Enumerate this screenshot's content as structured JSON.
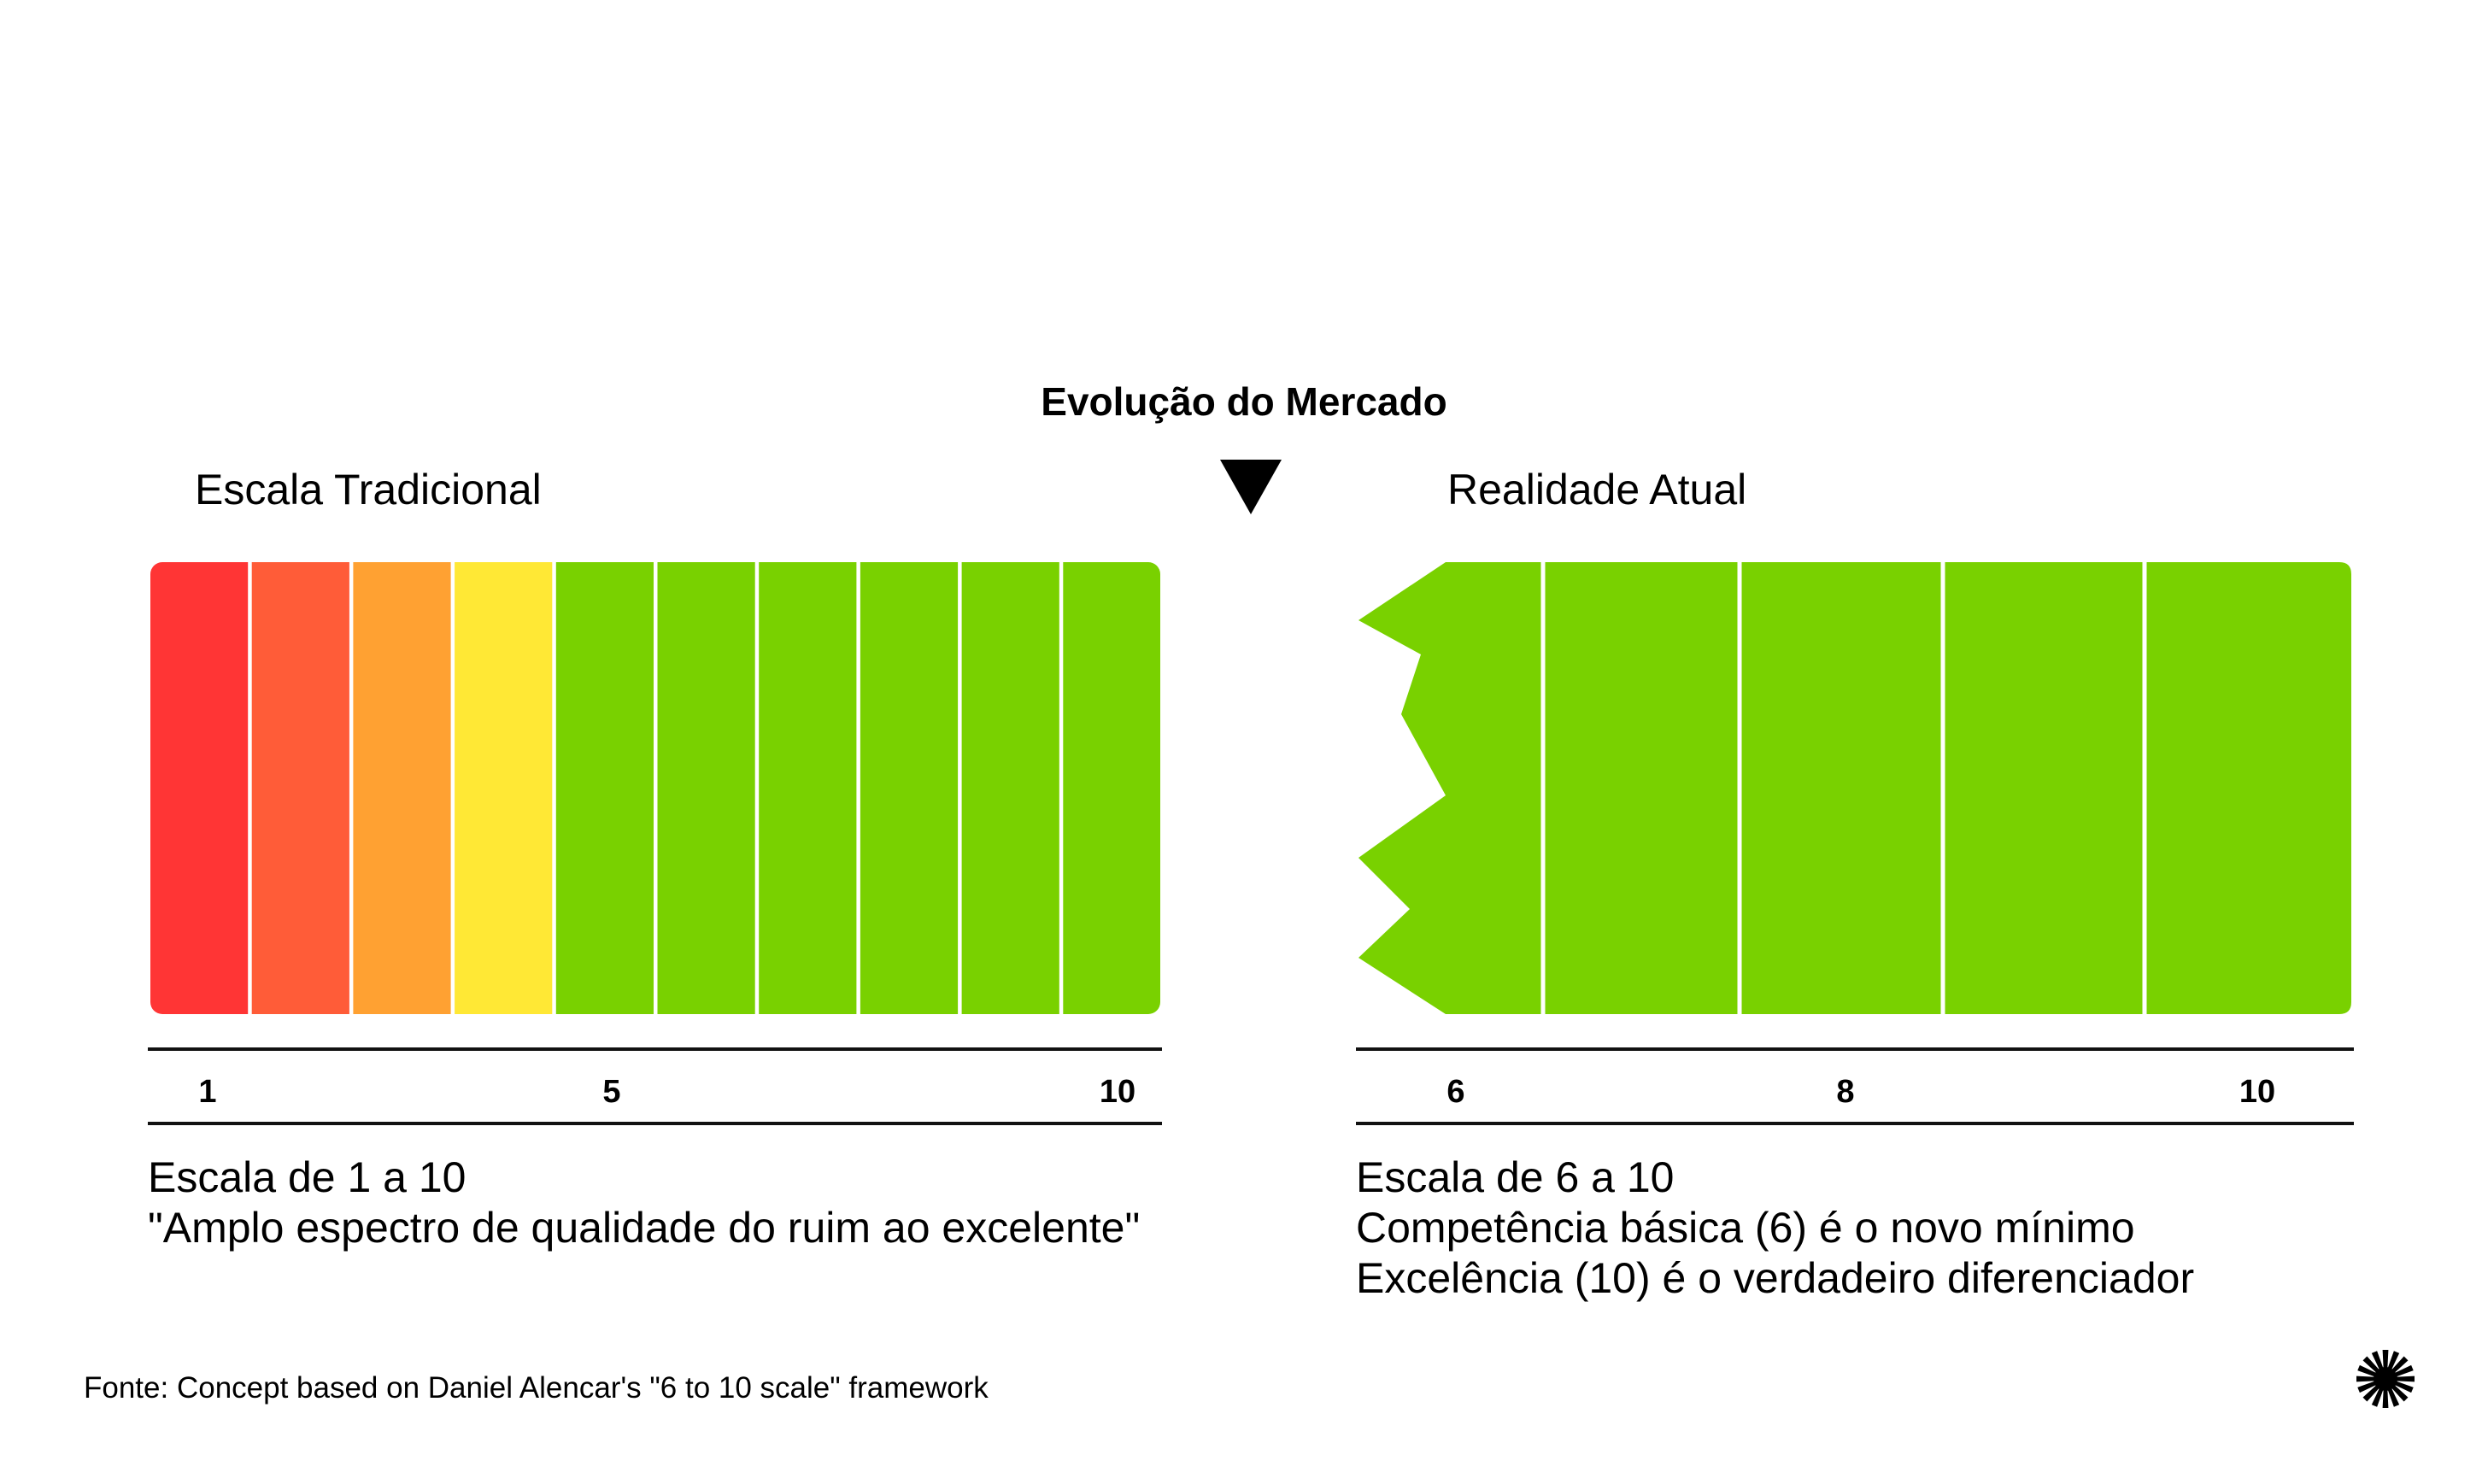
{
  "title": "Evolução do Mercado",
  "left_panel": {
    "heading": "Escala Tradicional",
    "segments": [
      {
        "value": 1,
        "color": "#FF3535"
      },
      {
        "value": 2,
        "color": "#FF5C38"
      },
      {
        "value": 3,
        "color": "#FFA132"
      },
      {
        "value": 4,
        "color": "#FFE835"
      },
      {
        "value": 5,
        "color": "#79D100"
      },
      {
        "value": 6,
        "color": "#79D100"
      },
      {
        "value": 7,
        "color": "#79D100"
      },
      {
        "value": 8,
        "color": "#79D100"
      },
      {
        "value": 9,
        "color": "#79D100"
      },
      {
        "value": 10,
        "color": "#79D100"
      }
    ],
    "ticks": [
      "1",
      "5",
      "10"
    ],
    "description": [
      "Escala de 1 a 10",
      "\"Amplo espectro de qualidade do ruim ao excelente\""
    ]
  },
  "right_panel": {
    "heading": "Realidade Atual",
    "segments": [
      {
        "value": 6,
        "color": "#79D100"
      },
      {
        "value": 7,
        "color": "#79D100"
      },
      {
        "value": 8,
        "color": "#79D100"
      },
      {
        "value": 9,
        "color": "#79D100"
      },
      {
        "value": 10,
        "color": "#79D100"
      }
    ],
    "ticks": [
      "6",
      "8",
      "10"
    ],
    "description": [
      "Escala de 6 a 10",
      "Competência básica (6) é o novo mínimo",
      "Excelência (10) é o verdadeiro diferenciador"
    ]
  },
  "source": "Fonte: Concept based on Daniel Alencar's \"6 to 10 scale\" framework",
  "icons": {
    "center_marker": "down-triangle-icon",
    "brand_logo": "starburst-logo-icon"
  },
  "colors": {
    "divider": "#FFFFFF",
    "text": "#000000",
    "green": "#79D100"
  }
}
